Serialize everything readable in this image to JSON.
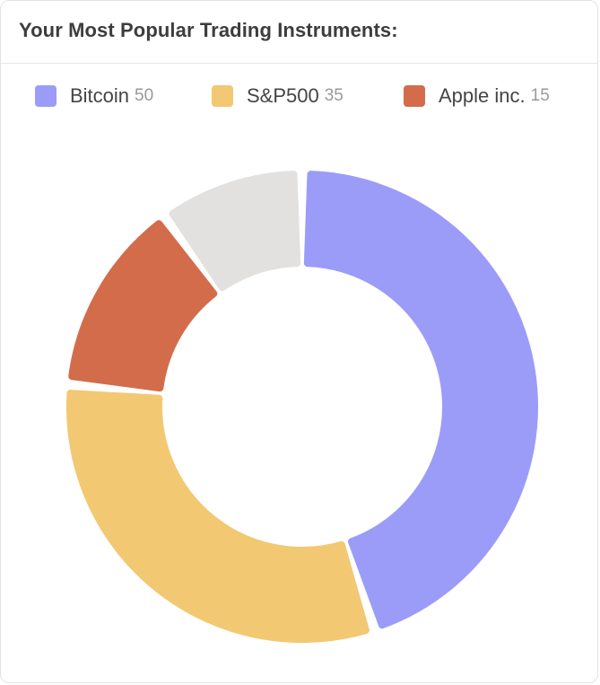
{
  "card": {
    "title": "Your Most Popular Trading Instruments:"
  },
  "chart_data": {
    "type": "pie",
    "donut": true,
    "categories": [
      "Bitcoin",
      "S&P500",
      "Apple inc."
    ],
    "values": [
      50,
      35,
      15
    ],
    "value_labels": [
      "50",
      "35",
      "15"
    ],
    "colors": [
      "#9b9cf8",
      "#f2c872",
      "#d36c4a"
    ],
    "remainder_color": "#e2e1df",
    "remainder_fraction": 0.1,
    "legend_position": "top"
  }
}
